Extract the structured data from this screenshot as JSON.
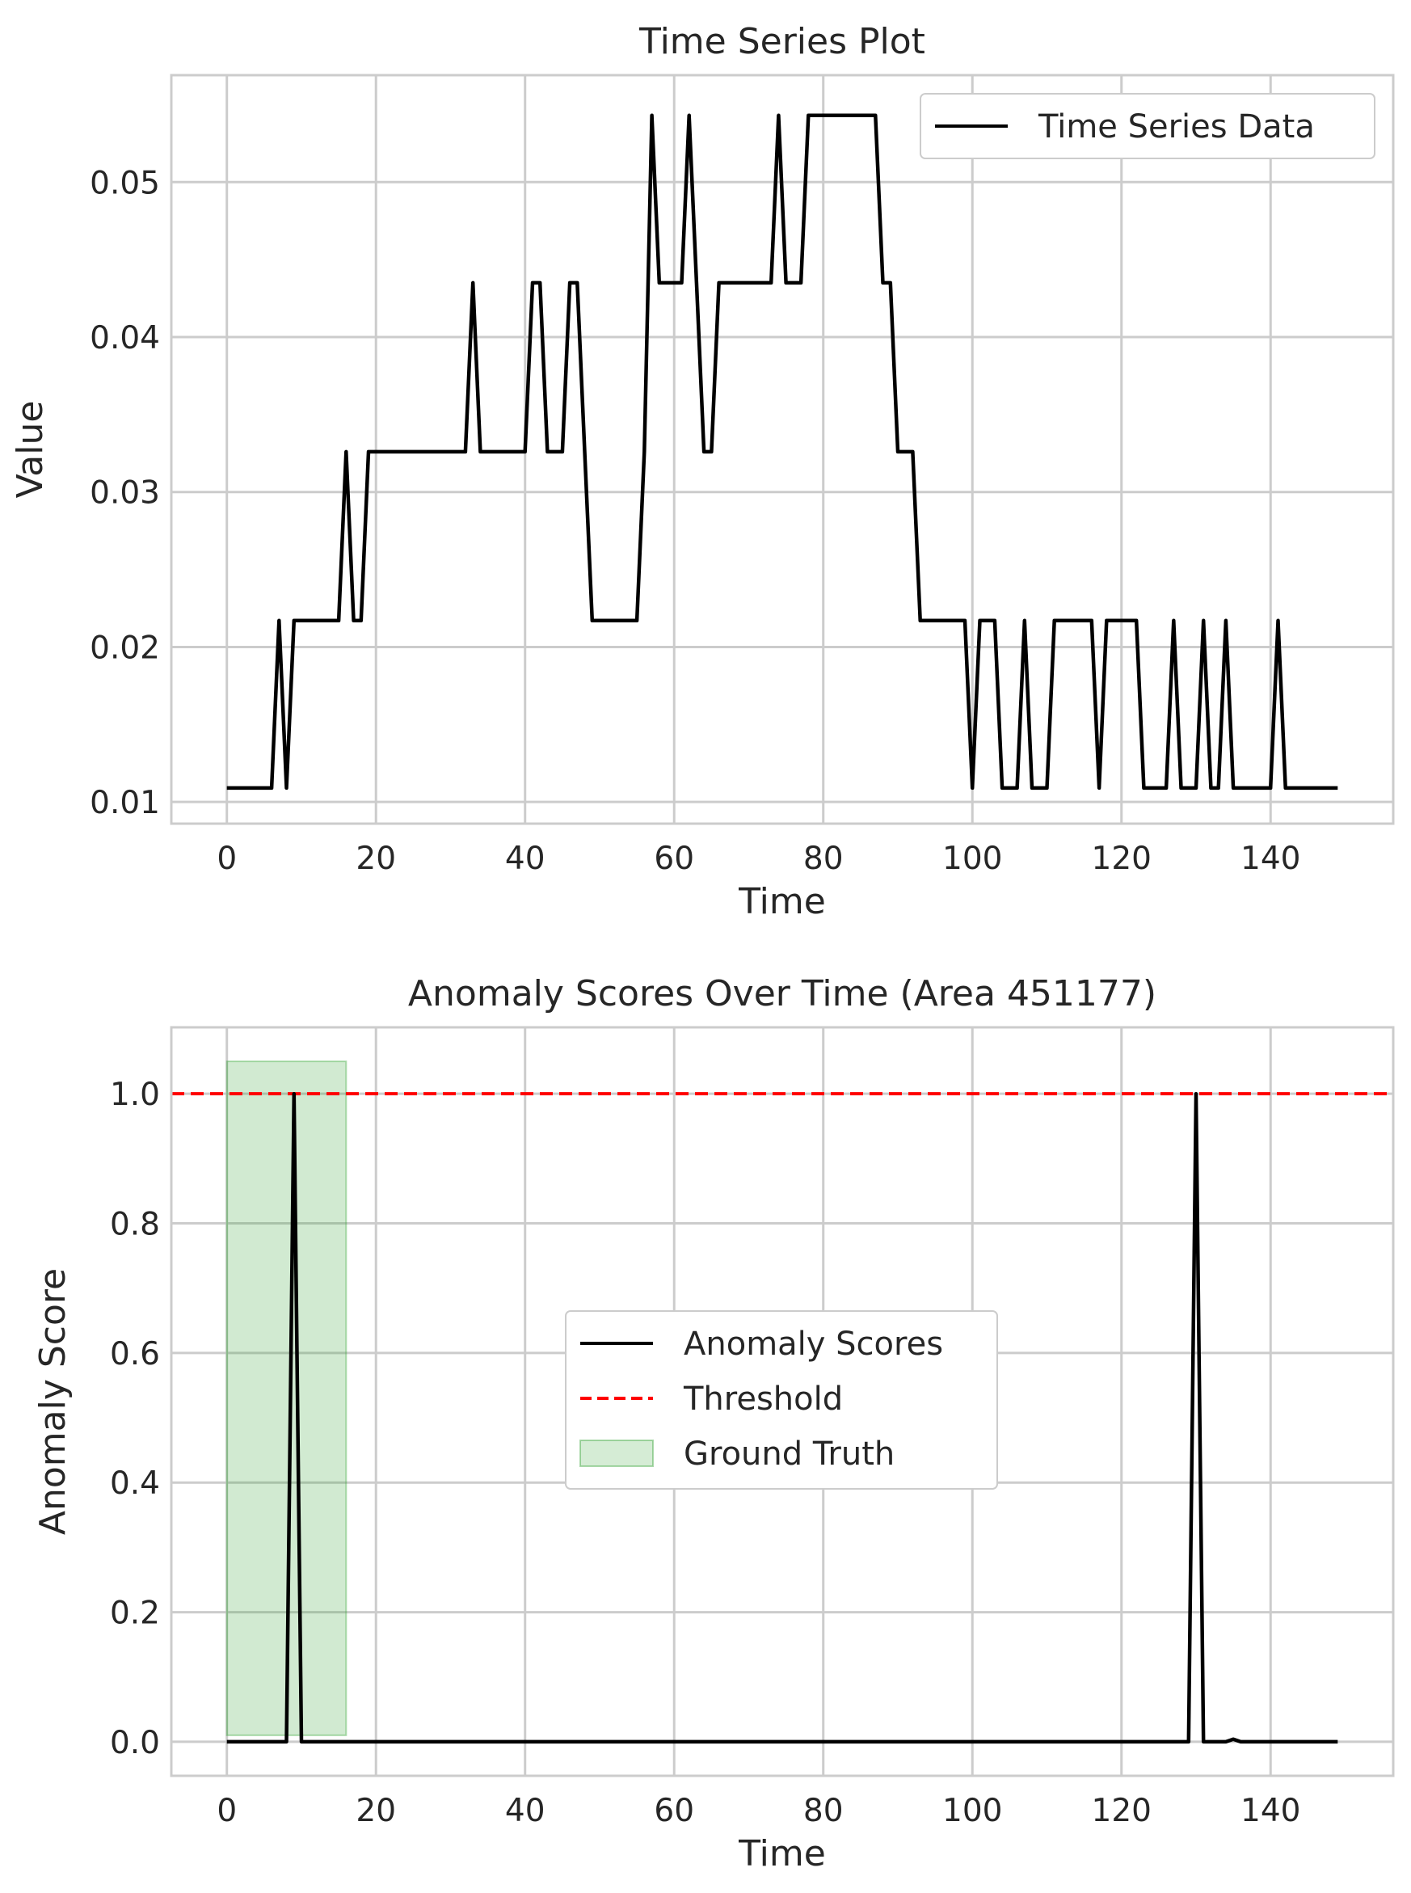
{
  "chart_data": [
    {
      "type": "line",
      "title": "Time Series Plot",
      "xlabel": "Time",
      "ylabel": "Value",
      "xlim": [
        -7.45,
        156.45
      ],
      "ylim": [
        0.0086,
        0.0569
      ],
      "xticks": [
        0,
        20,
        40,
        60,
        80,
        100,
        120,
        140
      ],
      "xtick_labels": [
        "0",
        "20",
        "40",
        "60",
        "80",
        "100",
        "120",
        "140"
      ],
      "yticks": [
        0.01,
        0.02,
        0.03,
        0.04,
        0.05
      ],
      "ytick_labels": [
        "0.01",
        "0.02",
        "0.03",
        "0.04",
        "0.05"
      ],
      "grid": true,
      "legend": {
        "position": "upper right",
        "entries": [
          "Time Series Data"
        ]
      },
      "series": [
        {
          "name": "Time Series Data",
          "color": "#000000",
          "style": "solid",
          "x": [
            0,
            1,
            2,
            3,
            4,
            5,
            6,
            7,
            8,
            9,
            10,
            11,
            12,
            13,
            14,
            15,
            16,
            17,
            18,
            19,
            20,
            21,
            22,
            23,
            24,
            25,
            26,
            27,
            28,
            29,
            30,
            31,
            32,
            33,
            34,
            35,
            36,
            37,
            38,
            39,
            40,
            41,
            42,
            43,
            44,
            45,
            46,
            47,
            48,
            49,
            50,
            51,
            52,
            53,
            54,
            55,
            56,
            57,
            58,
            59,
            60,
            61,
            62,
            63,
            64,
            65,
            66,
            67,
            68,
            69,
            70,
            71,
            72,
            73,
            74,
            75,
            76,
            77,
            78,
            79,
            80,
            81,
            82,
            83,
            84,
            85,
            86,
            87,
            88,
            89,
            90,
            91,
            92,
            93,
            94,
            95,
            96,
            97,
            98,
            99,
            100,
            101,
            102,
            103,
            104,
            105,
            106,
            107,
            108,
            109,
            110,
            111,
            112,
            113,
            114,
            115,
            116,
            117,
            118,
            119,
            120,
            121,
            122,
            123,
            124,
            125,
            126,
            127,
            128,
            129,
            130,
            131,
            132,
            133,
            134,
            135,
            136,
            137,
            138,
            139,
            140,
            141,
            142,
            143,
            144,
            145,
            146,
            147,
            148,
            149
          ],
          "y": [
            0.0109,
            0.0109,
            0.0109,
            0.0109,
            0.0109,
            0.0109,
            0.0109,
            0.0217,
            0.0109,
            0.0217,
            0.0217,
            0.0217,
            0.0217,
            0.0217,
            0.0217,
            0.0217,
            0.0326,
            0.0217,
            0.0217,
            0.0326,
            0.0326,
            0.0326,
            0.0326,
            0.0326,
            0.0326,
            0.0326,
            0.0326,
            0.0326,
            0.0326,
            0.0326,
            0.0326,
            0.0326,
            0.0326,
            0.0435,
            0.0326,
            0.0326,
            0.0326,
            0.0326,
            0.0326,
            0.0326,
            0.0326,
            0.0435,
            0.0435,
            0.0326,
            0.0326,
            0.0326,
            0.0435,
            0.0435,
            0.0326,
            0.0217,
            0.0217,
            0.0217,
            0.0217,
            0.0217,
            0.0217,
            0.0217,
            0.0326,
            0.0543,
            0.0435,
            0.0435,
            0.0435,
            0.0435,
            0.0543,
            0.0435,
            0.0326,
            0.0326,
            0.0435,
            0.0435,
            0.0435,
            0.0435,
            0.0435,
            0.0435,
            0.0435,
            0.0435,
            0.0543,
            0.0435,
            0.0435,
            0.0435,
            0.0543,
            0.0543,
            0.0543,
            0.0543,
            0.0543,
            0.0543,
            0.0543,
            0.0543,
            0.0543,
            0.0543,
            0.0435,
            0.0435,
            0.0326,
            0.0326,
            0.0326,
            0.0217,
            0.0217,
            0.0217,
            0.0217,
            0.0217,
            0.0217,
            0.0217,
            0.0109,
            0.0217,
            0.0217,
            0.0217,
            0.0109,
            0.0109,
            0.0109,
            0.0217,
            0.0109,
            0.0109,
            0.0109,
            0.0217,
            0.0217,
            0.0217,
            0.0217,
            0.0217,
            0.0217,
            0.0109,
            0.0217,
            0.0217,
            0.0217,
            0.0217,
            0.0217,
            0.0109,
            0.0109,
            0.0109,
            0.0109,
            0.0217,
            0.0109,
            0.0109,
            0.0109,
            0.0217,
            0.0109,
            0.0109,
            0.0217,
            0.0109,
            0.0109,
            0.0109,
            0.0109,
            0.0109,
            0.0109,
            0.0217,
            0.0109,
            0.0109,
            0.0109,
            0.0109,
            0.0109,
            0.0109,
            0.0109,
            0.0109
          ]
        }
      ]
    },
    {
      "type": "line",
      "title": "Anomaly Scores Over Time (Area 451177)",
      "xlabel": "Time",
      "ylabel": "Anomaly Score",
      "xlim": [
        -7.45,
        156.45
      ],
      "ylim": [
        -0.0525,
        1.1025
      ],
      "xticks": [
        0,
        20,
        40,
        60,
        80,
        100,
        120,
        140
      ],
      "xtick_labels": [
        "0",
        "20",
        "40",
        "60",
        "80",
        "100",
        "120",
        "140"
      ],
      "yticks": [
        0.0,
        0.2,
        0.4,
        0.6,
        0.8,
        1.0
      ],
      "ytick_labels": [
        "0.0",
        "0.2",
        "0.4",
        "0.6",
        "0.8",
        "1.0"
      ],
      "grid": true,
      "legend": {
        "position": "center",
        "entries": [
          "Anomaly Scores",
          "Threshold",
          "Ground Truth"
        ]
      },
      "series": [
        {
          "name": "Anomaly Scores",
          "color": "#000000",
          "style": "solid",
          "x": [
            0,
            8,
            9,
            10,
            129,
            130,
            131,
            134,
            135,
            136,
            149
          ],
          "y": [
            0,
            0,
            1.0,
            0,
            0,
            1.0,
            0,
            0,
            0.004,
            0,
            0
          ]
        },
        {
          "name": "Threshold",
          "color": "#ff0000",
          "style": "dashed",
          "value": 1.0
        },
        {
          "name": "Ground Truth",
          "color": "#2ca02c",
          "style": "fill",
          "x_start": 0,
          "x_end": 16,
          "y_bottom": 0.01,
          "y_top": 1.05
        }
      ]
    }
  ]
}
